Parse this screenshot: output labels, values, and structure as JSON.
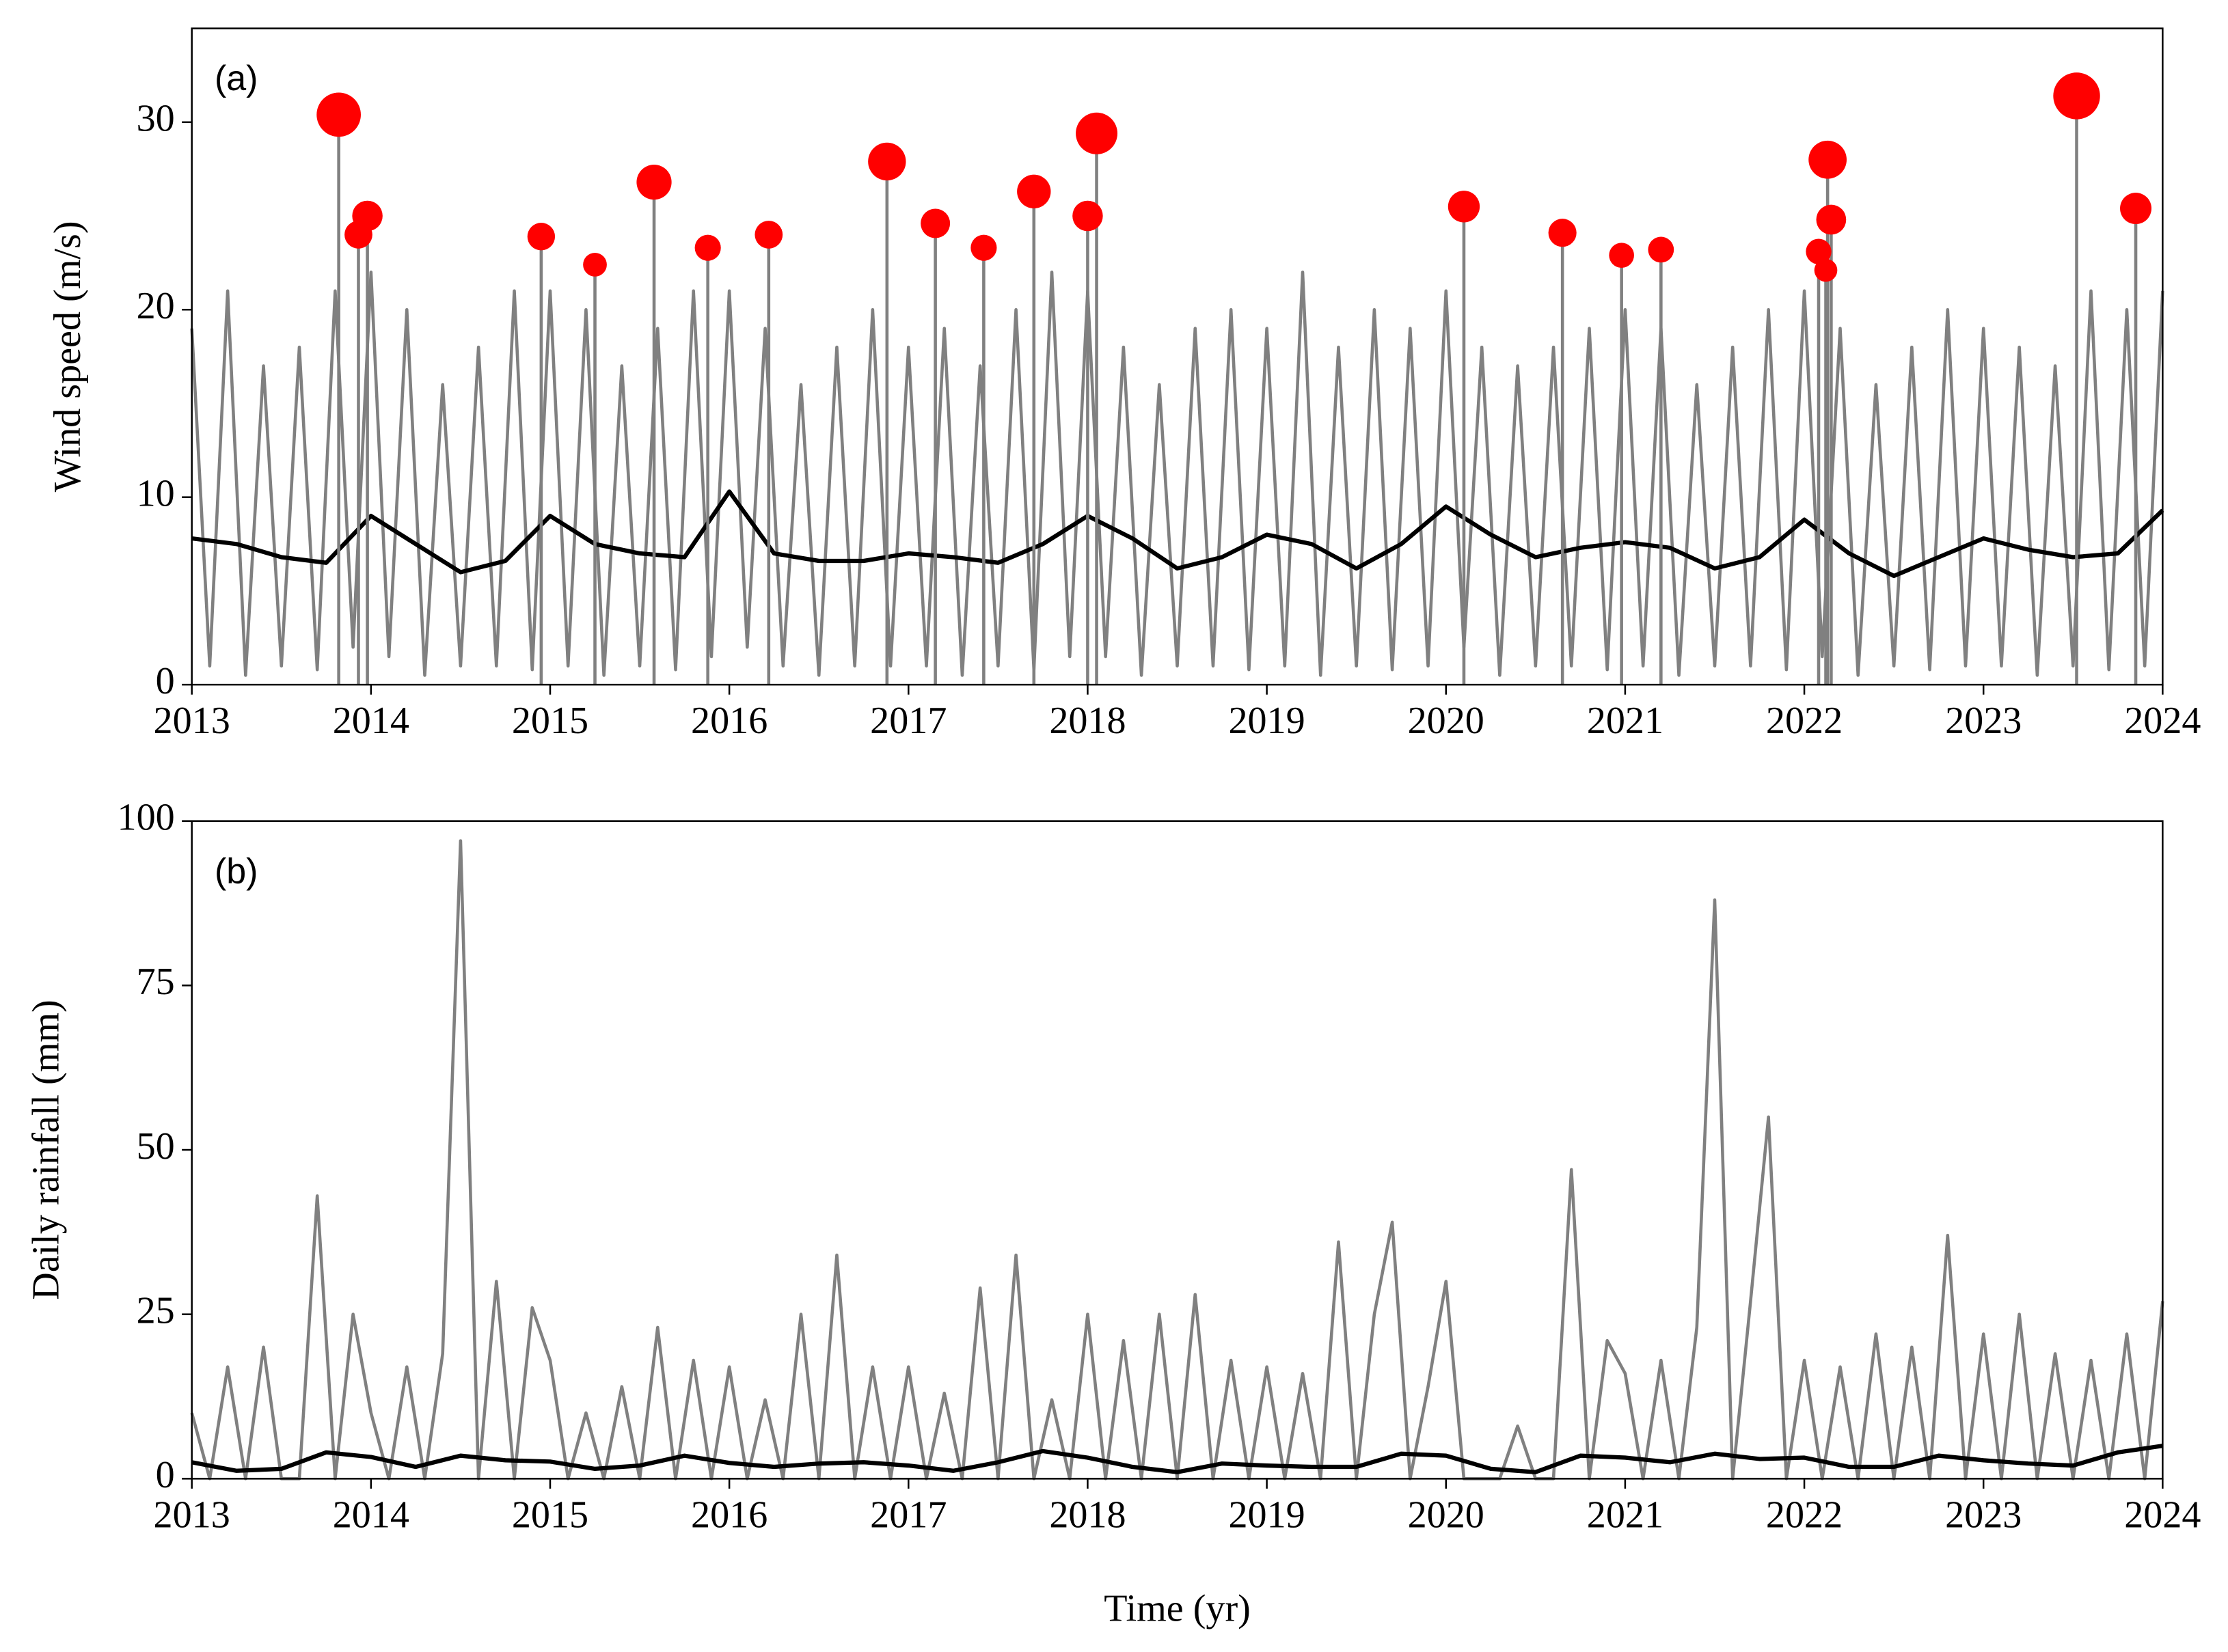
{
  "chart_data": [
    {
      "type": "line",
      "annotation": "(a)",
      "ylabel": "Wind speed (m/s)",
      "xlim": [
        2013,
        2024
      ],
      "xticks": [
        2013,
        2014,
        2015,
        2016,
        2017,
        2018,
        2019,
        2020,
        2021,
        2022,
        2023,
        2024
      ],
      "ylim": [
        0,
        35
      ],
      "yticks": [
        0,
        10,
        20,
        30
      ],
      "series": [
        {
          "color": "#808080",
          "x": [
            2013.0,
            2013.1,
            2013.2,
            2013.3,
            2013.4,
            2013.5,
            2013.6,
            2013.7,
            2013.8,
            2013.9,
            2014.0,
            2014.1,
            2014.2,
            2014.3,
            2014.4,
            2014.5,
            2014.6,
            2014.7,
            2014.8,
            2014.9,
            2015.0,
            2015.1,
            2015.2,
            2015.3,
            2015.4,
            2015.5,
            2015.6,
            2015.7,
            2015.8,
            2015.9,
            2016.0,
            2016.1,
            2016.2,
            2016.3,
            2016.4,
            2016.5,
            2016.6,
            2016.7,
            2016.8,
            2016.9,
            2017.0,
            2017.1,
            2017.2,
            2017.3,
            2017.4,
            2017.5,
            2017.6,
            2017.7,
            2017.8,
            2017.9,
            2018.0,
            2018.1,
            2018.2,
            2018.3,
            2018.4,
            2018.5,
            2018.6,
            2018.7,
            2018.8,
            2018.9,
            2019.0,
            2019.1,
            2019.2,
            2019.3,
            2019.4,
            2019.5,
            2019.6,
            2019.7,
            2019.8,
            2019.9,
            2020.0,
            2020.1,
            2020.2,
            2020.3,
            2020.4,
            2020.5,
            2020.6,
            2020.7,
            2020.8,
            2020.9,
            2021.0,
            2021.1,
            2021.2,
            2021.3,
            2021.4,
            2021.5,
            2021.6,
            2021.7,
            2021.8,
            2021.9,
            2022.0,
            2022.1,
            2022.2,
            2022.3,
            2022.4,
            2022.5,
            2022.6,
            2022.7,
            2022.8,
            2022.9,
            2023.0,
            2023.1,
            2023.2,
            2023.3,
            2023.4,
            2023.5,
            2023.6,
            2023.7,
            2023.8,
            2023.9,
            2024.0
          ],
          "values": [
            19,
            1,
            21,
            0.5,
            17,
            1,
            18,
            0.8,
            21,
            2,
            22,
            1.5,
            20,
            0.5,
            16,
            1,
            18,
            1,
            21,
            0.8,
            21,
            1,
            20,
            0.5,
            17,
            1,
            19,
            0.8,
            21,
            1.5,
            21,
            2,
            19,
            1,
            16,
            0.5,
            18,
            1,
            20,
            1,
            18,
            1,
            19,
            0.5,
            17,
            1,
            20,
            0.8,
            22,
            1.5,
            21,
            1.5,
            18,
            0.5,
            16,
            1,
            19,
            1,
            20,
            0.8,
            19,
            1,
            22,
            0.5,
            18,
            1,
            20,
            0.8,
            19,
            1,
            21,
            2,
            18,
            0.5,
            17,
            1,
            18,
            1,
            19,
            0.8,
            20,
            1,
            19,
            0.5,
            16,
            1,
            18,
            1,
            20,
            0.8,
            21,
            1.5,
            19,
            0.5,
            16,
            1,
            18,
            0.8,
            20,
            1,
            19,
            1,
            18,
            0.5,
            17,
            1,
            21,
            0.8,
            20,
            1,
            21
          ]
        },
        {
          "color": "#000000",
          "x": [
            2013,
            2013.25,
            2013.5,
            2013.75,
            2014,
            2014.25,
            2014.5,
            2014.75,
            2015,
            2015.25,
            2015.5,
            2015.75,
            2016,
            2016.25,
            2016.5,
            2016.75,
            2017,
            2017.25,
            2017.5,
            2017.75,
            2018,
            2018.25,
            2018.5,
            2018.75,
            2019,
            2019.25,
            2019.5,
            2019.75,
            2020,
            2020.25,
            2020.5,
            2020.75,
            2021,
            2021.25,
            2021.5,
            2021.75,
            2022,
            2022.25,
            2022.5,
            2022.75,
            2023,
            2023.25,
            2023.5,
            2023.75,
            2024
          ],
          "values": [
            7.8,
            7.5,
            6.8,
            6.5,
            9.0,
            7.5,
            6.0,
            6.6,
            9.0,
            7.5,
            7.0,
            6.8,
            10.3,
            7.0,
            6.6,
            6.6,
            7.0,
            6.8,
            6.5,
            7.5,
            9.0,
            7.8,
            6.2,
            6.8,
            8.0,
            7.5,
            6.2,
            7.5,
            9.5,
            8.0,
            6.8,
            7.3,
            7.6,
            7.3,
            6.2,
            6.8,
            8.8,
            7.0,
            5.8,
            6.8,
            7.8,
            7.2,
            6.8,
            7.0,
            9.3
          ]
        },
        {
          "type": "scatter",
          "color": "#ff0000",
          "x": [
            2013.82,
            2013.93,
            2013.98,
            2014.95,
            2015.25,
            2015.58,
            2015.88,
            2016.22,
            2016.88,
            2017.15,
            2017.42,
            2017.7,
            2018.0,
            2018.05,
            2020.1,
            2020.65,
            2020.98,
            2021.2,
            2022.08,
            2022.13,
            2022.15,
            2022.12,
            2023.52,
            2023.85
          ],
          "values": [
            30.4,
            24.0,
            25.0,
            23.9,
            22.4,
            26.8,
            23.3,
            24.0,
            27.9,
            24.6,
            23.3,
            26.3,
            25.0,
            29.4,
            25.5,
            24.1,
            22.9,
            23.2,
            23.1,
            28.0,
            24.8,
            22.1,
            31.4,
            25.4
          ]
        }
      ]
    },
    {
      "type": "line",
      "annotation": "(b)",
      "ylabel": "Daily rainfall (mm)",
      "xlabel": "Time (yr)",
      "xlim": [
        2013,
        2024
      ],
      "xticks": [
        2013,
        2014,
        2015,
        2016,
        2017,
        2018,
        2019,
        2020,
        2021,
        2022,
        2023,
        2024
      ],
      "ylim": [
        0,
        100
      ],
      "yticks": [
        0,
        25,
        50,
        75,
        100
      ],
      "series": [
        {
          "color": "#808080",
          "x": [
            2013.0,
            2013.1,
            2013.2,
            2013.3,
            2013.4,
            2013.5,
            2013.6,
            2013.7,
            2013.8,
            2013.9,
            2014.0,
            2014.1,
            2014.2,
            2014.3,
            2014.4,
            2014.5,
            2014.6,
            2014.7,
            2014.8,
            2014.9,
            2015.0,
            2015.1,
            2015.2,
            2015.3,
            2015.4,
            2015.5,
            2015.6,
            2015.7,
            2015.8,
            2015.9,
            2016.0,
            2016.1,
            2016.2,
            2016.3,
            2016.4,
            2016.5,
            2016.6,
            2016.7,
            2016.8,
            2016.9,
            2017.0,
            2017.1,
            2017.2,
            2017.3,
            2017.4,
            2017.5,
            2017.6,
            2017.7,
            2017.8,
            2017.9,
            2018.0,
            2018.1,
            2018.2,
            2018.3,
            2018.4,
            2018.5,
            2018.6,
            2018.7,
            2018.8,
            2018.9,
            2019.0,
            2019.1,
            2019.2,
            2019.3,
            2019.4,
            2019.5,
            2019.6,
            2019.7,
            2019.8,
            2019.9,
            2020.0,
            2020.1,
            2020.2,
            2020.3,
            2020.4,
            2020.5,
            2020.6,
            2020.7,
            2020.8,
            2020.9,
            2021.0,
            2021.1,
            2021.2,
            2021.3,
            2021.4,
            2021.5,
            2021.6,
            2021.7,
            2021.8,
            2021.9,
            2022.0,
            2022.1,
            2022.2,
            2022.3,
            2022.4,
            2022.5,
            2022.6,
            2022.7,
            2022.8,
            2022.9,
            2023.0,
            2023.1,
            2023.2,
            2023.3,
            2023.4,
            2023.5,
            2023.6,
            2023.7,
            2023.8,
            2023.9,
            2024.0
          ],
          "values": [
            10,
            0,
            17,
            0,
            20,
            0,
            0,
            43,
            0,
            25,
            10,
            0,
            17,
            0,
            19,
            97,
            0,
            30,
            0,
            26,
            18,
            0,
            10,
            0,
            14,
            0,
            23,
            0,
            18,
            0,
            17,
            0,
            12,
            0,
            25,
            0,
            34,
            0,
            17,
            0,
            17,
            0,
            13,
            0,
            29,
            0,
            34,
            0,
            12,
            0,
            25,
            0,
            21,
            0,
            25,
            0,
            28,
            0,
            18,
            0,
            17,
            0,
            16,
            0,
            36,
            0,
            25,
            39,
            0,
            14,
            30,
            0,
            0,
            0,
            8,
            0,
            0,
            47,
            0,
            21,
            16,
            0,
            18,
            0,
            23,
            88,
            0,
            27,
            55,
            0,
            18,
            0,
            17,
            0,
            22,
            0,
            20,
            0,
            37,
            0,
            22,
            0,
            25,
            0,
            19,
            0,
            18,
            0,
            22,
            0,
            27
          ]
        },
        {
          "color": "#000000",
          "x": [
            2013,
            2013.25,
            2013.5,
            2013.75,
            2014,
            2014.25,
            2014.5,
            2014.75,
            2015,
            2015.25,
            2015.5,
            2015.75,
            2016,
            2016.25,
            2016.5,
            2016.75,
            2017,
            2017.25,
            2017.5,
            2017.75,
            2018,
            2018.25,
            2018.5,
            2018.75,
            2019,
            2019.25,
            2019.5,
            2019.75,
            2020,
            2020.25,
            2020.5,
            2020.75,
            2021,
            2021.25,
            2021.5,
            2021.75,
            2022,
            2022.25,
            2022.5,
            2022.75,
            2023,
            2023.25,
            2023.5,
            2023.75,
            2024
          ],
          "values": [
            2.5,
            1.2,
            1.5,
            4.0,
            3.3,
            1.8,
            3.5,
            2.8,
            2.6,
            1.5,
            2.0,
            3.5,
            2.4,
            1.8,
            2.3,
            2.5,
            2.0,
            1.2,
            2.5,
            4.2,
            3.2,
            1.8,
            1.0,
            2.3,
            2.0,
            1.8,
            1.8,
            3.8,
            3.5,
            1.5,
            1.0,
            3.5,
            3.2,
            2.5,
            3.8,
            3.0,
            3.2,
            1.8,
            1.8,
            3.5,
            2.8,
            2.3,
            2.0,
            4.0,
            5.0
          ]
        }
      ]
    }
  ]
}
